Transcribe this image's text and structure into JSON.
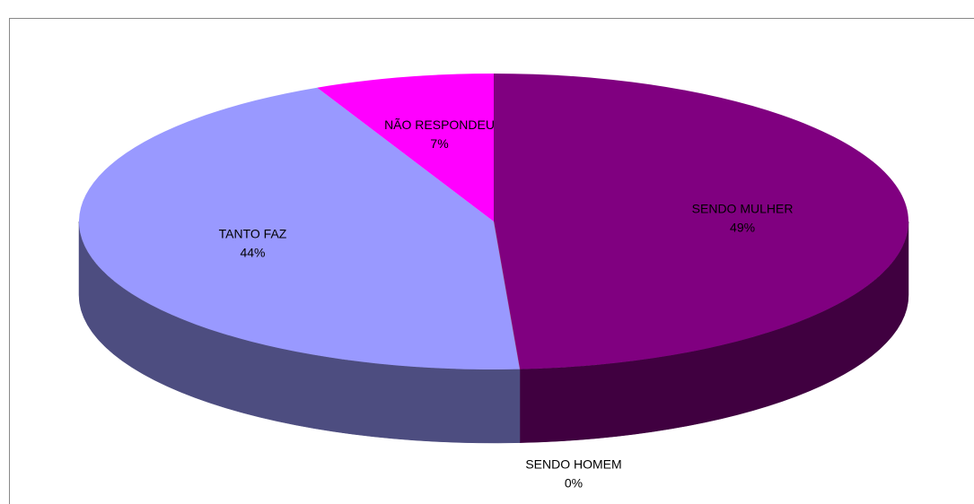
{
  "chart_data": {
    "type": "pie",
    "categories": [
      "SENDO MULHER",
      "SENDO HOMEM",
      "TANTO FAZ",
      "NÃO RESPONDEU"
    ],
    "values": [
      49,
      0,
      44,
      7
    ],
    "value_labels": [
      "49%",
      "0%",
      "44%",
      "7%"
    ],
    "colors": [
      "#800080",
      "#993366",
      "#9999ff",
      "#ff00ff"
    ]
  }
}
